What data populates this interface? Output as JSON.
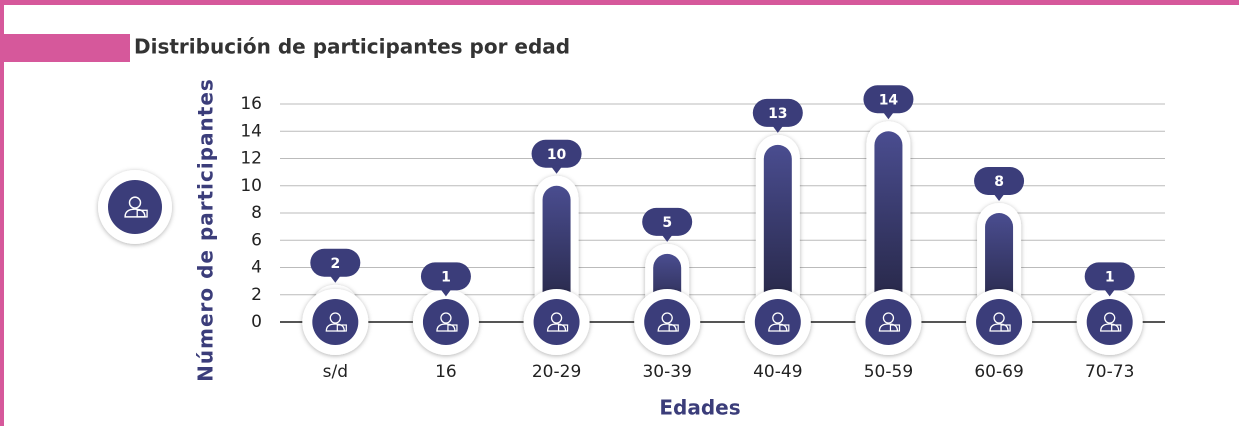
{
  "chart_data": {
    "type": "bar",
    "title": "Distribución de participantes por edad",
    "x_label": "Edades",
    "y_label": "Número de participantes",
    "categories": [
      "s/d",
      "16",
      "20-29",
      "30-39",
      "40-49",
      "50-59",
      "60-69",
      "70-73"
    ],
    "values": [
      2,
      1,
      10,
      5,
      13,
      14,
      8,
      1
    ],
    "color": "#3b3d7a",
    "ylim": [
      0,
      16
    ],
    "yticks": [
      0,
      2,
      4,
      6,
      8,
      10,
      12,
      14,
      16
    ],
    "grid": true
  }
}
